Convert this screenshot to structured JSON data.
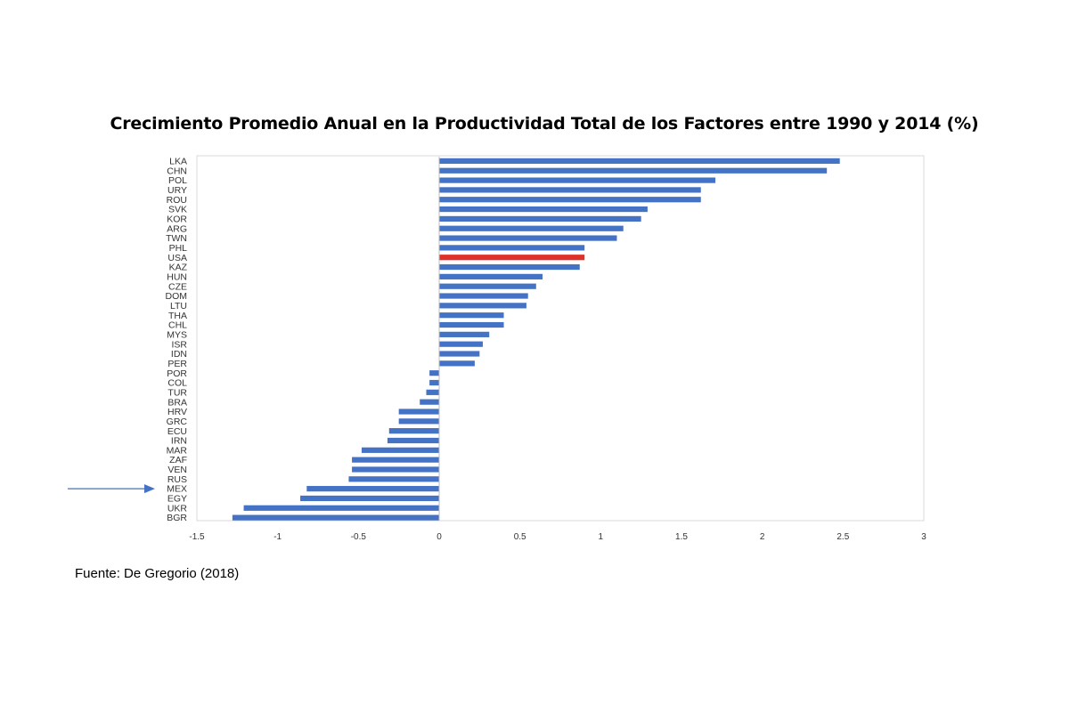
{
  "chart_data": {
    "type": "bar",
    "orientation": "horizontal",
    "title": "Crecimiento Promedio Anual en la Productividad Total de los Factores entre 1990 y 2014 (%)",
    "xlabel": "",
    "ylabel": "",
    "xlim": [
      -1.5,
      3
    ],
    "xticks": [
      "-1.5",
      "-1",
      "-0.5",
      "0",
      "0.5",
      "1",
      "1.5",
      "2",
      "2.5",
      "3"
    ],
    "grid": false,
    "legend": "none",
    "categories": [
      "LKA",
      "CHN",
      "POL",
      "URY",
      "ROU",
      "SVK",
      "KOR",
      "ARG",
      "TWN",
      "PHL",
      "USA",
      "KAZ",
      "HUN",
      "CZE",
      "DOM",
      "LTU",
      "THA",
      "CHL",
      "MYS",
      "ISR",
      "IDN",
      "PER",
      "POR",
      "COL",
      "TUR",
      "BRA",
      "HRV",
      "GRC",
      "ECU",
      "IRN",
      "MAR",
      "ZAF",
      "VEN",
      "RUS",
      "MEX",
      "EGY",
      "UKR",
      "BGR"
    ],
    "values": [
      2.48,
      2.4,
      1.71,
      1.62,
      1.62,
      1.29,
      1.25,
      1.14,
      1.1,
      0.9,
      0.9,
      0.87,
      0.64,
      0.6,
      0.55,
      0.54,
      0.4,
      0.4,
      0.31,
      0.27,
      0.25,
      0.22,
      -0.06,
      -0.06,
      -0.08,
      -0.12,
      -0.25,
      -0.25,
      -0.31,
      -0.32,
      -0.48,
      -0.54,
      -0.54,
      -0.56,
      -0.82,
      -0.86,
      -1.21,
      -1.28
    ],
    "highlight": {
      "category": "USA",
      "color": "#e0302a"
    },
    "bar_color": "#4472c4",
    "annotation": {
      "type": "arrow",
      "points_to": "MEX",
      "color": "#4472c4"
    }
  },
  "source": "Fuente: De Gregorio (2018)"
}
